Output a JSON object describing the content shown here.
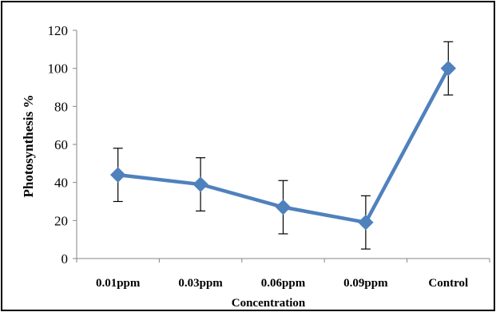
{
  "chart_data": {
    "type": "line",
    "title": "",
    "xlabel": "Concentration",
    "ylabel": "Photosynthesis %",
    "categories": [
      "0.01ppm",
      "0.03ppm",
      "0.06ppm",
      "0.09ppm",
      "Control"
    ],
    "series": [
      {
        "values": [
          44,
          39,
          27,
          19,
          100
        ],
        "error": [
          14,
          14,
          14,
          14,
          14
        ],
        "color": "#4f81bd",
        "marker": "diamond"
      }
    ],
    "ylim": [
      0,
      120
    ],
    "yticks": [
      "0",
      "20",
      "40",
      "60",
      "80",
      "100",
      "120"
    ],
    "grid": false,
    "legend": "none"
  }
}
